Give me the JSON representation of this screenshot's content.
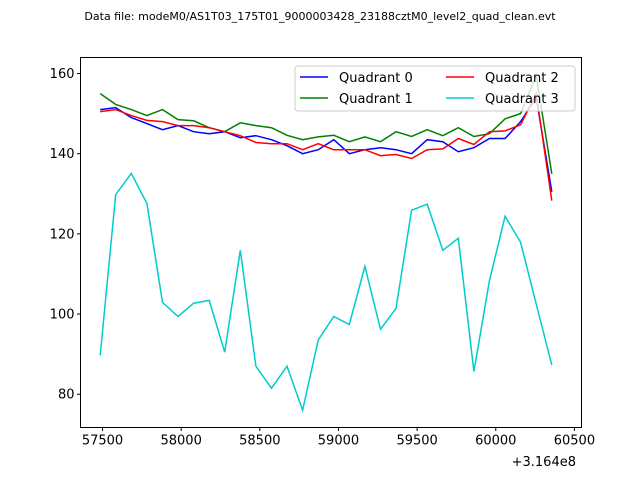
{
  "chart_data": {
    "type": "line",
    "title": "Data file: modeM0/AS1T03_175T01_9000003428_23188cztM0_level2_quad_clean.evt",
    "xlabel": "",
    "ylabel": "",
    "x_offset_label": "+3.164e8",
    "xlim": [
      57360,
      60545
    ],
    "ylim": [
      71.7,
      164
    ],
    "xticks": [
      57500,
      58000,
      58500,
      59000,
      59500,
      60000,
      60500
    ],
    "yticks": [
      80,
      100,
      120,
      140,
      160
    ],
    "grid": false,
    "legend_position": "top-right",
    "x": [
      57485,
      57584,
      57683,
      57782,
      57881,
      57980,
      58079,
      58178,
      58277,
      58376,
      58475,
      58574,
      58673,
      58772,
      58871,
      58970,
      59069,
      59168,
      59267,
      59366,
      59465,
      59564,
      59663,
      59762,
      59861,
      59960,
      60059,
      60158,
      60257,
      60356
    ],
    "series": [
      {
        "name": "Quadrant 0",
        "color": "#0000ff",
        "values": [
          151,
          151.5,
          149,
          147.5,
          146,
          147,
          145.5,
          145,
          145.5,
          144,
          144.5,
          143.5,
          142,
          140,
          141,
          143.5,
          140,
          141,
          141.5,
          141,
          140,
          143.5,
          143,
          140.5,
          141.5,
          143.8,
          143.8,
          148,
          154,
          130.5
        ]
      },
      {
        "name": "Quadrant 1",
        "color": "#008000",
        "values": [
          155,
          152.3,
          151,
          149.5,
          151,
          148.5,
          148.2,
          146.5,
          145.5,
          147.7,
          147,
          146.5,
          144.6,
          143.5,
          144.2,
          144.6,
          143,
          144.2,
          143,
          145.5,
          144.3,
          146,
          144.5,
          146.5,
          144.3,
          145,
          148.7,
          150,
          159.5,
          135
        ]
      },
      {
        "name": "Quadrant 2",
        "color": "#ff0000",
        "values": [
          150.5,
          151,
          149.5,
          148.3,
          148,
          147,
          147,
          146.5,
          145.5,
          144.5,
          142.8,
          142.5,
          142.5,
          141,
          142.5,
          141,
          141,
          141,
          139.5,
          139.8,
          138.8,
          141,
          141.2,
          143.8,
          142.3,
          145.5,
          145.7,
          147.2,
          155,
          128.3
        ]
      },
      {
        "name": "Quadrant 3",
        "color": "#00cccc",
        "values": [
          89.7,
          129.8,
          135.1,
          127.6,
          102.9,
          99.4,
          102.7,
          103.4,
          90.5,
          115.9,
          87,
          81.5,
          87,
          76,
          93.5,
          99.4,
          97.4,
          111.9,
          96.2,
          101.4,
          125.9,
          127.4,
          115.9,
          118.9,
          85.7,
          108.4,
          124.4,
          117.9,
          102.5,
          87.3
        ]
      }
    ]
  }
}
